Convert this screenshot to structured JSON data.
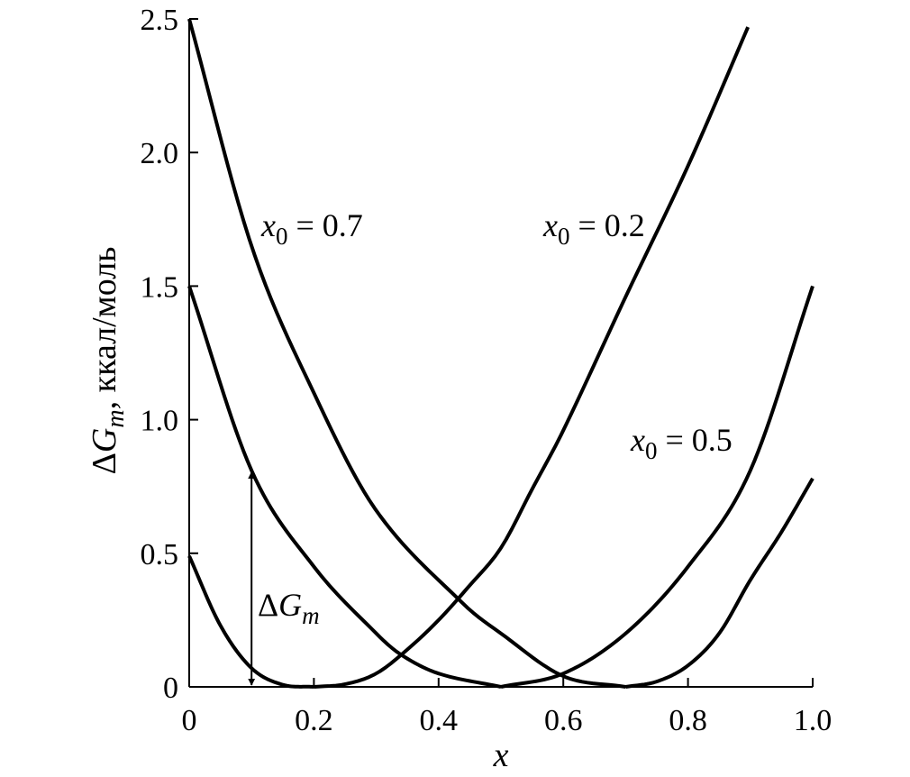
{
  "chart_data": {
    "type": "line",
    "xlabel": "x",
    "ylabel": {
      "delta": "Δ",
      "G": "G",
      "m": "m",
      "rest": ", ккал/моль"
    },
    "xlim": [
      0,
      1.0
    ],
    "ylim": [
      0,
      2.5
    ],
    "x_ticks": [
      "0",
      "0.2",
      "0.4",
      "0.6",
      "0.8",
      "1.0"
    ],
    "y_ticks": [
      "0",
      "0.5",
      "1.0",
      "1.5",
      "2.0",
      "2.5"
    ],
    "grid": false,
    "series": [
      {
        "name": "x0 = 0.2",
        "label_var": "x",
        "label_sub": "0",
        "label_val": " = 0.2",
        "segments": [
          [
            0,
            0.2
          ],
          [
            0.2,
            0.905
          ]
        ],
        "points": [
          [
            0,
            0.49
          ],
          [
            0.05,
            0.23
          ],
          [
            0.1,
            0.07
          ],
          [
            0.15,
            0.008
          ],
          [
            0.2,
            0
          ],
          [
            0.25,
            0.01
          ],
          [
            0.3,
            0.05
          ],
          [
            0.35,
            0.14
          ],
          [
            0.4,
            0.25
          ],
          [
            0.45,
            0.38
          ],
          [
            0.5,
            0.52
          ],
          [
            0.55,
            0.74
          ],
          [
            0.6,
            0.96
          ],
          [
            0.7,
            1.46
          ],
          [
            0.8,
            1.95
          ],
          [
            0.9,
            2.49
          ]
        ]
      },
      {
        "name": "x0 = 0.5",
        "label_var": "x",
        "label_sub": "0",
        "label_val": " = 0.5",
        "segments": [
          [
            0,
            0.5
          ],
          [
            0.5,
            1.0
          ]
        ],
        "points": [
          [
            0,
            1.5
          ],
          [
            0.1,
            0.81
          ],
          [
            0.2,
            0.45
          ],
          [
            0.3,
            0.2
          ],
          [
            0.34,
            0.12
          ],
          [
            0.4,
            0.05
          ],
          [
            0.5,
            0
          ],
          [
            0.6,
            0.05
          ],
          [
            0.7,
            0.2
          ],
          [
            0.8,
            0.45
          ],
          [
            0.9,
            0.81
          ],
          [
            1.0,
            1.5
          ]
        ]
      },
      {
        "name": "x0 = 0.7",
        "label_var": "x",
        "label_sub": "0",
        "label_val": " = 0.7",
        "segments": [
          [
            0,
            0.7
          ],
          [
            0.7,
            1.0
          ]
        ],
        "points": [
          [
            0,
            2.5
          ],
          [
            0.1,
            1.65
          ],
          [
            0.2,
            1.1
          ],
          [
            0.3,
            0.66
          ],
          [
            0.44,
            0.31
          ],
          [
            0.5,
            0.2
          ],
          [
            0.6,
            0.04
          ],
          [
            0.7,
            0
          ],
          [
            0.75,
            0.02
          ],
          [
            0.8,
            0.08
          ],
          [
            0.85,
            0.2
          ],
          [
            0.9,
            0.4
          ],
          [
            0.95,
            0.58
          ],
          [
            1.0,
            0.78
          ]
        ]
      }
    ],
    "annotations": [
      {
        "delta": "Δ",
        "G": "G",
        "m": "m",
        "x_from": 0.1,
        "y_from": 0,
        "y_to": 0.81
      }
    ]
  }
}
